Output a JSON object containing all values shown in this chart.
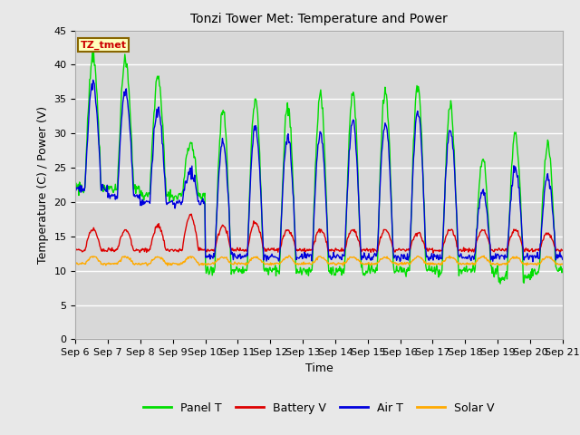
{
  "title": "Tonzi Tower Met: Temperature and Power",
  "xlabel": "Time",
  "ylabel": "Temperature (C) / Power (V)",
  "annotation": "TZ_tmet",
  "ylim": [
    0,
    45
  ],
  "yticks": [
    0,
    5,
    10,
    15,
    20,
    25,
    30,
    35,
    40,
    45
  ],
  "x_labels": [
    "Sep 6",
    "Sep 7",
    "Sep 8",
    "Sep 9",
    "Sep 10",
    "Sep 11",
    "Sep 12",
    "Sep 13",
    "Sep 14",
    "Sep 15",
    "Sep 16",
    "Sep 17",
    "Sep 18",
    "Sep 19",
    "Sep 20",
    "Sep 21"
  ],
  "colors": {
    "panel_t": "#00dd00",
    "battery_v": "#dd0000",
    "air_t": "#0000dd",
    "solar_v": "#ffaa00"
  },
  "fig_bg": "#e8e8e8",
  "plot_bg": "#d8d8d8",
  "grid_color": "#ffffff",
  "legend_labels": [
    "Panel T",
    "Battery V",
    "Air T",
    "Solar V"
  ],
  "panel_peaks": [
    41.0,
    40.5,
    38.0,
    29.0,
    33.5,
    35.0,
    34.0,
    35.5,
    36.0,
    36.0,
    37.0,
    34.0,
    26.0,
    30.0,
    28.5
  ],
  "air_peaks": [
    37.0,
    36.0,
    33.5,
    24.5,
    29.0,
    31.0,
    29.5,
    30.0,
    31.5,
    31.5,
    33.0,
    30.5,
    21.5,
    25.0,
    23.5
  ],
  "panel_nights": [
    22.0,
    22.0,
    21.0,
    21.0,
    10.0,
    10.0,
    10.0,
    10.0,
    10.0,
    10.0,
    10.0,
    10.0,
    10.0,
    9.0,
    10.0
  ],
  "air_nights": [
    22.0,
    21.0,
    20.0,
    20.0,
    12.0,
    12.0,
    12.0,
    12.0,
    12.0,
    12.0,
    12.0,
    12.0,
    12.0,
    12.0,
    12.0
  ],
  "batt_peaks": [
    16.0,
    16.0,
    16.5,
    18.0,
    16.5,
    17.0,
    16.0,
    16.0,
    16.0,
    16.0,
    15.5,
    16.0,
    16.0,
    16.0,
    15.5
  ],
  "batt_base": 13.0,
  "solar_day": 12.0,
  "solar_night": 11.0
}
